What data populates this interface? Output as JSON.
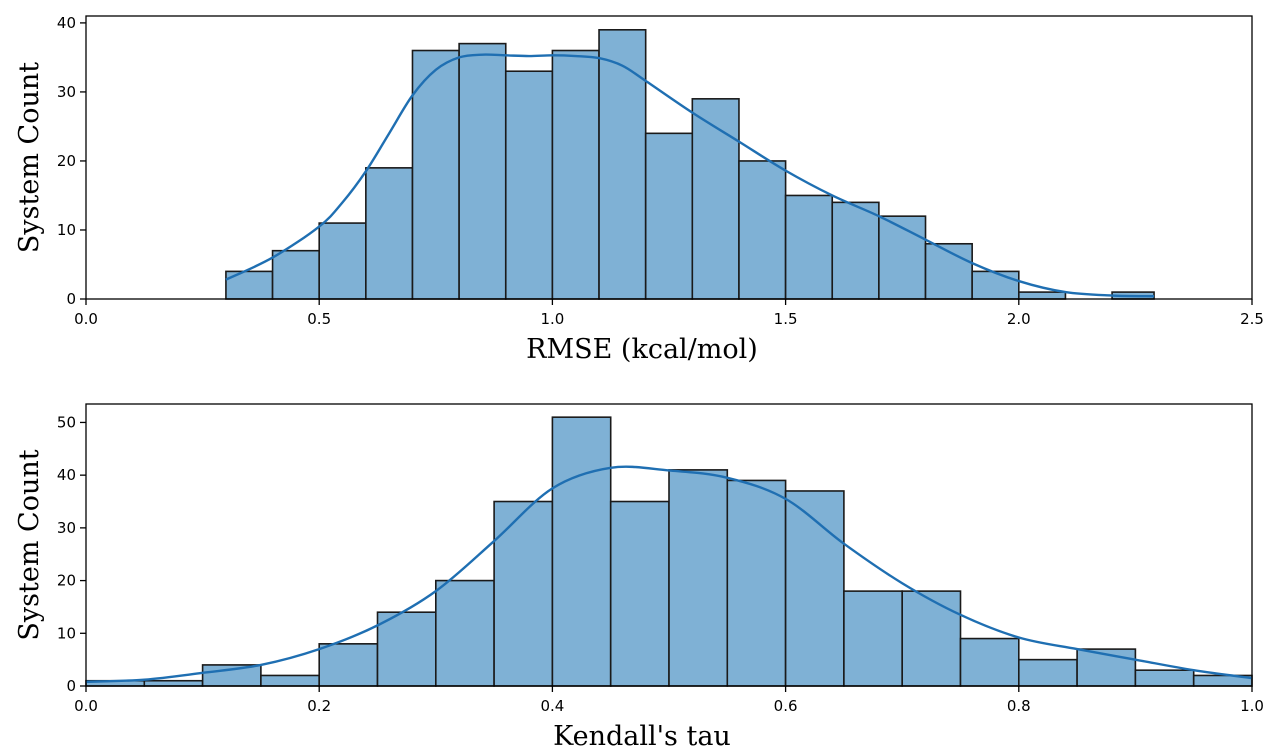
{
  "chart_data": [
    {
      "type": "bar",
      "subtype": "histogram-with-kde",
      "xlabel": "RMSE (kcal/mol)",
      "ylabel": "System Count",
      "xlim": [
        0.0,
        2.5
      ],
      "ylim": [
        0,
        41
      ],
      "xticks": [
        "0.0",
        "0.5",
        "1.0",
        "1.5",
        "2.0",
        "2.5"
      ],
      "yticks": [
        "0",
        "10",
        "20",
        "30",
        "40"
      ],
      "bin_edges": [
        0.3,
        0.4,
        0.5,
        0.6,
        0.7,
        0.8,
        0.9,
        1.0,
        1.1,
        1.2,
        1.3,
        1.4,
        1.5,
        1.6,
        1.7,
        1.8,
        1.9,
        2.0,
        2.1,
        2.2,
        2.29
      ],
      "values": [
        4,
        7,
        11,
        19,
        36,
        37,
        33,
        36,
        39,
        24,
        29,
        20,
        15,
        14,
        12,
        8,
        4,
        1,
        0,
        1
      ],
      "kde": {
        "x": [
          0.3,
          0.4,
          0.5,
          0.55,
          0.6,
          0.65,
          0.7,
          0.75,
          0.8,
          0.85,
          0.9,
          0.95,
          1.0,
          1.05,
          1.1,
          1.15,
          1.2,
          1.3,
          1.4,
          1.5,
          1.6,
          1.7,
          1.8,
          1.9,
          2.0,
          2.1,
          2.2,
          2.29
        ],
        "y": [
          2.8,
          6.0,
          10.5,
          14.0,
          18.5,
          24.0,
          29.5,
          33.2,
          35.0,
          35.4,
          35.3,
          35.2,
          35.3,
          35.2,
          34.9,
          33.8,
          31.6,
          27.0,
          22.8,
          18.6,
          15.0,
          12.0,
          8.6,
          5.2,
          2.6,
          1.0,
          0.5,
          0.4
        ]
      },
      "colors": {
        "bar_fill": "#7fb1d5",
        "bar_edge": "#1a1a1a",
        "kde": "#1f6fb2"
      },
      "grid": false
    },
    {
      "type": "bar",
      "subtype": "histogram-with-kde",
      "xlabel": "Kendall's tau",
      "ylabel": "System Count",
      "xlim": [
        0.0,
        1.0
      ],
      "ylim": [
        0,
        53.5
      ],
      "xticks": [
        "0.0",
        "0.2",
        "0.4",
        "0.6",
        "0.8",
        "1.0"
      ],
      "yticks": [
        "0",
        "10",
        "20",
        "30",
        "40",
        "50"
      ],
      "bin_edges": [
        0.0,
        0.05,
        0.1,
        0.15,
        0.2,
        0.25,
        0.3,
        0.35,
        0.4,
        0.45,
        0.5,
        0.55,
        0.6,
        0.65,
        0.7,
        0.75,
        0.8,
        0.85,
        0.9,
        0.95,
        1.0
      ],
      "values": [
        1,
        1,
        4,
        2,
        8,
        14,
        20,
        35,
        51,
        35,
        41,
        39,
        37,
        18,
        18,
        9,
        5,
        7,
        3,
        2
      ],
      "kde": {
        "x": [
          0.0,
          0.05,
          0.1,
          0.15,
          0.2,
          0.25,
          0.3,
          0.35,
          0.4,
          0.45,
          0.5,
          0.55,
          0.6,
          0.65,
          0.7,
          0.75,
          0.8,
          0.85,
          0.9,
          0.95,
          1.0
        ],
        "y": [
          0.8,
          1.2,
          2.5,
          4.0,
          7.0,
          11.5,
          18.0,
          27.5,
          37.5,
          41.4,
          40.9,
          39.5,
          35.5,
          27.0,
          19.5,
          13.5,
          9.2,
          7.0,
          5.0,
          3.0,
          1.5
        ]
      },
      "colors": {
        "bar_fill": "#7fb1d5",
        "bar_edge": "#1a1a1a",
        "kde": "#1f6fb2"
      },
      "grid": false
    }
  ]
}
